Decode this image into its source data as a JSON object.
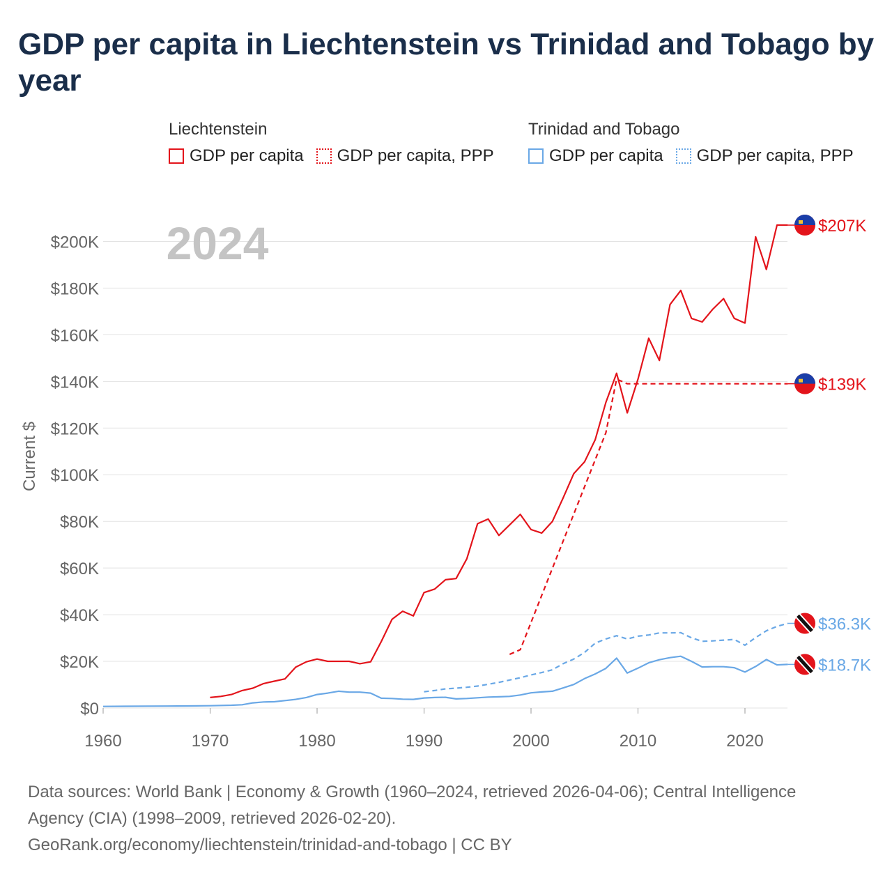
{
  "title": "GDP per capita in Liechtenstein vs Trinidad and Tobago by year",
  "legend": {
    "groups": [
      {
        "name": "Liechtenstein",
        "items": [
          {
            "label": "GDP per capita",
            "style": "solid"
          },
          {
            "label": "GDP per capita, PPP",
            "style": "dotted"
          }
        ],
        "color": "#e3141b"
      },
      {
        "name": "Trinidad and Tobago",
        "items": [
          {
            "label": "GDP per capita",
            "style": "solid"
          },
          {
            "label": "GDP per capita, PPP",
            "style": "dotted"
          }
        ],
        "color": "#6aa8e6"
      }
    ]
  },
  "year_label": "2024",
  "source": {
    "line1": "Data sources: World Bank | Economy & Growth (1960–2024, retrieved 2026-04-06); Central Intelligence",
    "line2": "Agency (CIA) (1998–2009, retrieved 2026-02-20).",
    "line3": "GeoRank.org/economy/liechtenstein/trinidad-and-tobago | CC BY"
  },
  "chart_data": {
    "type": "line",
    "title": "GDP per capita in Liechtenstein vs Trinidad and Tobago by year",
    "xlabel": "",
    "ylabel": "Current $",
    "xlim": [
      1960,
      2024
    ],
    "ylim": [
      0,
      210000
    ],
    "xticks": [
      1960,
      1970,
      1980,
      1990,
      2000,
      2010,
      2020
    ],
    "xtick_labels": [
      "1960",
      "1970",
      "1980",
      "1990",
      "2000",
      "2010",
      "2020"
    ],
    "yticks": [
      0,
      20000,
      40000,
      60000,
      80000,
      100000,
      120000,
      140000,
      160000,
      180000,
      200000
    ],
    "ytick_labels": [
      "$0",
      "$20K",
      "$40K",
      "$60K",
      "$80K",
      "$100K",
      "$120K",
      "$140K",
      "$160K",
      "$180K",
      "$200K"
    ],
    "grid": true,
    "series": [
      {
        "name": "Liechtenstein GDP per capita",
        "color": "#e3141b",
        "dash": "solid",
        "end_label": "$207K",
        "x": [
          1970,
          1971,
          1972,
          1973,
          1974,
          1975,
          1976,
          1977,
          1978,
          1979,
          1980,
          1981,
          1982,
          1983,
          1984,
          1985,
          1986,
          1987,
          1988,
          1989,
          1990,
          1991,
          1992,
          1993,
          1994,
          1995,
          1996,
          1997,
          1998,
          1999,
          2000,
          2001,
          2002,
          2003,
          2004,
          2005,
          2006,
          2007,
          2008,
          2009,
          2010,
          2011,
          2012,
          2013,
          2014,
          2015,
          2016,
          2017,
          2018,
          2019,
          2020,
          2021,
          2022,
          2023,
          2024
        ],
        "y": [
          4500,
          5000,
          5800,
          7500,
          8500,
          10500,
          11500,
          12500,
          17500,
          19800,
          21000,
          20000,
          20000,
          20000,
          19000,
          19800,
          28500,
          38000,
          41500,
          39500,
          49500,
          51000,
          55000,
          55500,
          64000,
          79000,
          81000,
          74000,
          78500,
          83000,
          76500,
          75000,
          80000,
          90000,
          100500,
          105500,
          115000,
          131000,
          143500,
          126500,
          141000,
          158500,
          149000,
          173000,
          179000,
          167000,
          165500,
          171000,
          175500,
          167000,
          165000,
          202000,
          188000,
          207000,
          207000
        ]
      },
      {
        "name": "Liechtenstein GDP per capita, PPP",
        "color": "#e3141b",
        "dash": "dashed",
        "end_label": "$139K",
        "x": [
          1998,
          1999,
          2007,
          2008,
          2009,
          2024
        ],
        "y": [
          23000,
          25000,
          118000,
          141000,
          139000,
          139000
        ]
      },
      {
        "name": "Trinidad and Tobago GDP per capita",
        "color": "#6aa8e6",
        "dash": "solid",
        "end_label": "$18.7K",
        "x": [
          1960,
          1962,
          1964,
          1966,
          1968,
          1970,
          1972,
          1973,
          1974,
          1975,
          1976,
          1977,
          1978,
          1979,
          1980,
          1981,
          1982,
          1983,
          1984,
          1985,
          1986,
          1987,
          1988,
          1989,
          1990,
          1991,
          1992,
          1993,
          1994,
          1995,
          1996,
          1997,
          1998,
          1999,
          2000,
          2001,
          2002,
          2003,
          2004,
          2005,
          2006,
          2007,
          2008,
          2009,
          2010,
          2011,
          2012,
          2013,
          2014,
          2015,
          2016,
          2017,
          2018,
          2019,
          2020,
          2021,
          2022,
          2023,
          2024
        ],
        "y": [
          700,
          750,
          800,
          850,
          900,
          1000,
          1200,
          1400,
          2200,
          2600,
          2700,
          3200,
          3700,
          4500,
          5800,
          6400,
          7200,
          6800,
          6800,
          6400,
          4200,
          4100,
          3800,
          3700,
          4300,
          4500,
          4600,
          3900,
          4100,
          4400,
          4700,
          4800,
          5000,
          5600,
          6500,
          6900,
          7200,
          8600,
          10100,
          12600,
          14600,
          17000,
          21400,
          15000,
          17100,
          19400,
          20700,
          21600,
          22200,
          20000,
          17600,
          17700,
          17700,
          17300,
          15400,
          17800,
          20800,
          18500,
          18700
        ]
      },
      {
        "name": "Trinidad and Tobago GDP per capita, PPP",
        "color": "#6aa8e6",
        "dash": "dashed",
        "end_label": "$36.3K",
        "x": [
          1990,
          1991,
          1992,
          1993,
          1994,
          1995,
          1996,
          1997,
          1998,
          1999,
          2000,
          2001,
          2002,
          2003,
          2004,
          2005,
          2006,
          2007,
          2008,
          2009,
          2010,
          2011,
          2012,
          2013,
          2014,
          2015,
          2016,
          2017,
          2018,
          2019,
          2020,
          2021,
          2022,
          2023,
          2024
        ],
        "y": [
          7000,
          7500,
          8200,
          8500,
          8900,
          9400,
          10200,
          11000,
          12000,
          13000,
          14200,
          15200,
          16400,
          19000,
          21000,
          23800,
          27800,
          29600,
          31000,
          29600,
          30800,
          31300,
          32200,
          32200,
          32300,
          30100,
          28600,
          28800,
          29100,
          29400,
          26900,
          30200,
          33100,
          35000,
          36300
        ]
      }
    ]
  }
}
